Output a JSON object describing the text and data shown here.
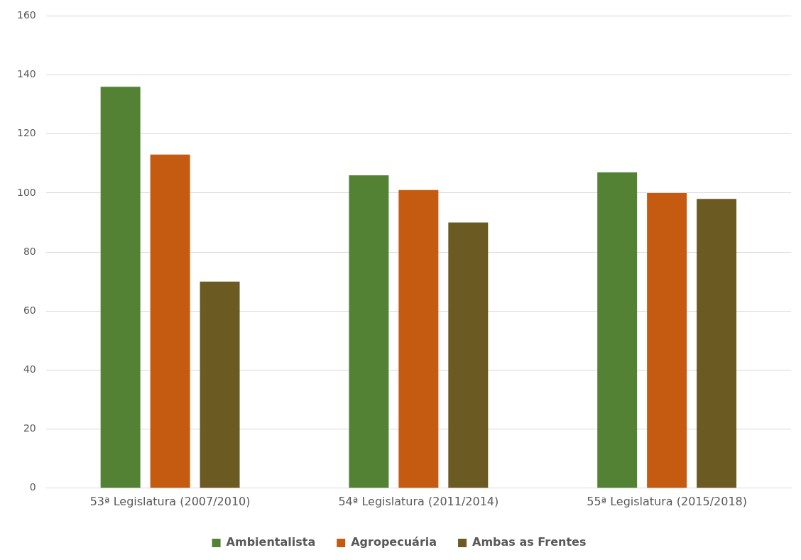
{
  "chart_data": {
    "type": "bar",
    "categories": [
      "53ª Legislatura (2007/2010)",
      "54ª Legislatura (2011/2014)",
      "55ª Legislatura (2015/2018)"
    ],
    "series": [
      {
        "name": "Ambientalista",
        "color": "#548235",
        "values": [
          136,
          106,
          107
        ]
      },
      {
        "name": "Agropecuária",
        "color": "#c55a11",
        "values": [
          113,
          101,
          100
        ]
      },
      {
        "name": "Ambas as Frentes",
        "color": "#6b5a22",
        "values": [
          70,
          90,
          98
        ]
      }
    ],
    "ylim": [
      0,
      160
    ],
    "yticks": [
      0,
      20,
      40,
      60,
      80,
      100,
      120,
      140,
      160
    ],
    "grid": "y",
    "legend": "bottom"
  }
}
